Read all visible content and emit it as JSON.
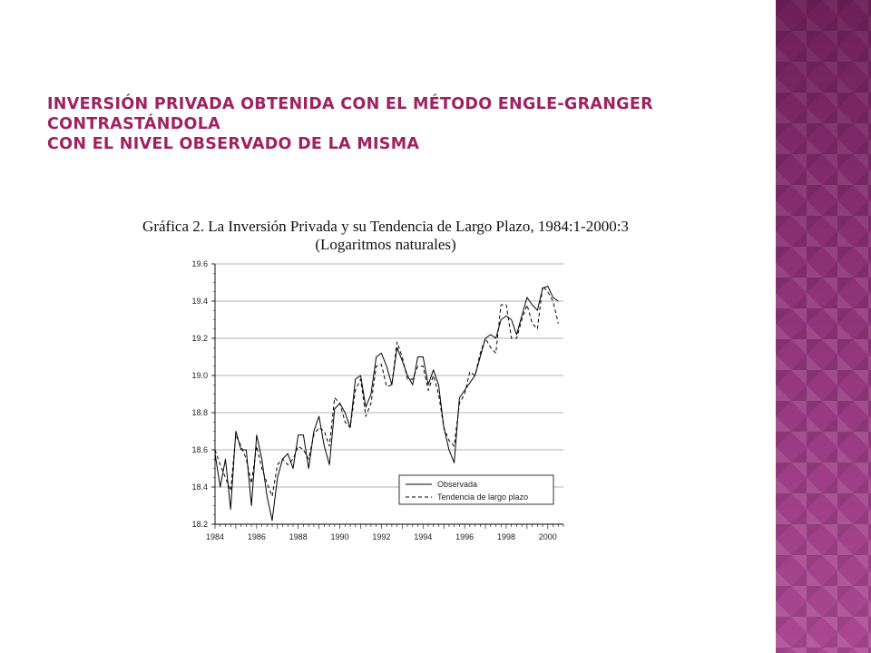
{
  "slide": {
    "title_line1": "Inversión privada obtenida con el método Engle-Granger contrastándola",
    "title_line2": "con el nivel observado de la misma",
    "colors": {
      "title": "#a0215f",
      "band": "#9b3a84"
    }
  },
  "chart_data": {
    "type": "line",
    "title": "Gráfica 2. La Inversión Privada y su Tendencia de Largo Plazo, 1984:1-2000:3",
    "subtitle": "(Logaritmos naturales)",
    "xlabel": "",
    "ylabel": "",
    "xlim": [
      1984.0,
      2000.75
    ],
    "ylim": [
      18.2,
      19.6
    ],
    "x_ticks": [
      "1984",
      "1986",
      "1988",
      "1990",
      "1992",
      "1994",
      "1996",
      "1998",
      "2000"
    ],
    "y_ticks": [
      "18.2",
      "18.4",
      "18.6",
      "18.8",
      "19.0",
      "19.2",
      "19.4",
      "19.6"
    ],
    "grid": "horizontal",
    "legend_position": "bottom-right",
    "x": [
      1984.0,
      1984.25,
      1984.5,
      1984.75,
      1985.0,
      1985.25,
      1985.5,
      1985.75,
      1986.0,
      1986.25,
      1986.5,
      1986.75,
      1987.0,
      1987.25,
      1987.5,
      1987.75,
      1988.0,
      1988.25,
      1988.5,
      1988.75,
      1989.0,
      1989.25,
      1989.5,
      1989.75,
      1990.0,
      1990.25,
      1990.5,
      1990.75,
      1991.0,
      1991.25,
      1991.5,
      1991.75,
      1992.0,
      1992.25,
      1992.5,
      1992.75,
      1993.0,
      1993.25,
      1993.5,
      1993.75,
      1994.0,
      1994.25,
      1994.5,
      1994.75,
      1995.0,
      1995.25,
      1995.5,
      1995.75,
      1996.0,
      1996.25,
      1996.5,
      1996.75,
      1997.0,
      1997.25,
      1997.5,
      1997.75,
      1998.0,
      1998.25,
      1998.5,
      1998.75,
      1999.0,
      1999.25,
      1999.5,
      1999.75,
      2000.0,
      2000.25,
      2000.5
    ],
    "series": [
      {
        "name": "Observada",
        "style": "solid",
        "values": [
          18.58,
          18.4,
          18.55,
          18.28,
          18.7,
          18.6,
          18.6,
          18.3,
          18.68,
          18.55,
          18.35,
          18.22,
          18.45,
          18.55,
          18.58,
          18.5,
          18.68,
          18.68,
          18.5,
          18.7,
          18.78,
          18.62,
          18.52,
          18.82,
          18.85,
          18.8,
          18.72,
          18.98,
          19.0,
          18.83,
          18.9,
          19.1,
          19.12,
          19.05,
          18.95,
          19.15,
          19.08,
          19.0,
          18.95,
          19.1,
          19.1,
          18.95,
          19.03,
          18.95,
          18.72,
          18.6,
          18.53,
          18.88,
          18.92,
          18.96,
          19.0,
          19.1,
          19.2,
          19.22,
          19.2,
          19.3,
          19.32,
          19.3,
          19.22,
          19.32,
          19.42,
          19.38,
          19.35,
          19.47,
          19.48,
          19.42,
          19.4
        ]
      },
      {
        "name": "Tendencia de largo plazo",
        "style": "dashed",
        "values": [
          18.6,
          18.52,
          18.45,
          18.38,
          18.68,
          18.62,
          18.55,
          18.42,
          18.62,
          18.5,
          18.42,
          18.35,
          18.52,
          18.55,
          18.52,
          18.55,
          18.62,
          18.6,
          18.55,
          18.68,
          18.72,
          18.7,
          18.62,
          18.88,
          18.85,
          18.75,
          18.72,
          18.92,
          18.98,
          18.78,
          18.85,
          19.05,
          19.06,
          18.94,
          18.95,
          19.18,
          19.1,
          18.98,
          18.98,
          19.05,
          19.05,
          18.92,
          19.0,
          18.9,
          18.72,
          18.65,
          18.62,
          18.85,
          18.9,
          19.02,
          19.0,
          19.12,
          19.2,
          19.15,
          19.12,
          19.38,
          19.38,
          19.2,
          19.2,
          19.3,
          19.38,
          19.28,
          19.25,
          19.48,
          19.45,
          19.4,
          19.28
        ]
      }
    ]
  }
}
